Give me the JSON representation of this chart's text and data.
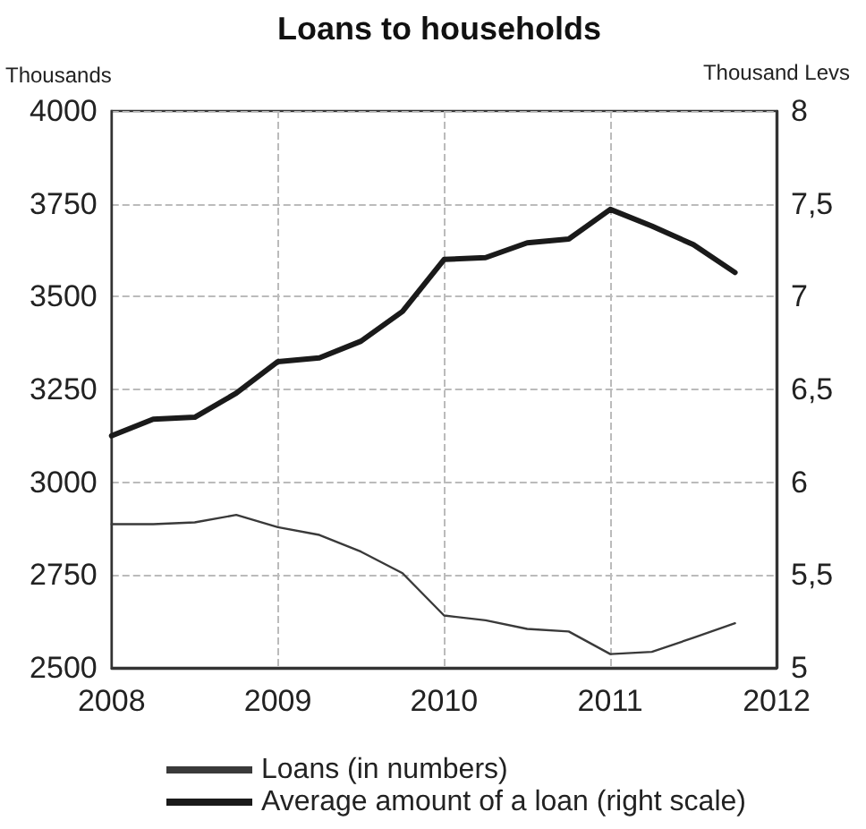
{
  "chart_data": {
    "type": "line",
    "title": "Loans to households",
    "ylabel": "Thousands",
    "y2label": "Thousand Levs",
    "x": [
      2008,
      2008.25,
      2008.5,
      2008.75,
      2009,
      2009.25,
      2009.5,
      2009.75,
      2010,
      2010.25,
      2010.5,
      2010.75,
      2011,
      2011.25,
      2011.5,
      2011.75
    ],
    "series": [
      {
        "name": "Loans (in numbers)",
        "color": "#3a3a3a",
        "values": [
          2887,
          2887,
          2892,
          2912,
          2879,
          2858,
          2813,
          2755,
          2641,
          2628,
          2605,
          2598,
          2537,
          2543,
          2581,
          2620
        ]
      },
      {
        "name": "Average amount of a loan (right scale)",
        "color": "#1a1a1a",
        "axis": "y2",
        "values": [
          6.25,
          6.34,
          6.35,
          6.48,
          6.65,
          6.67,
          6.76,
          6.92,
          7.2,
          7.21,
          7.29,
          7.31,
          7.47,
          7.38,
          7.28,
          7.13
        ]
      }
    ],
    "xlim": [
      2008,
      2012
    ],
    "xticks": [
      2008,
      2009,
      2010,
      2011,
      2012
    ],
    "ylim": [
      2500,
      4000
    ],
    "yticks": [
      2500,
      2750,
      3000,
      3250,
      3500,
      3750,
      4000
    ],
    "y2lim": [
      5,
      8
    ],
    "y2ticks": [
      5,
      {
        "value": 5.5,
        "label": "5,5"
      },
      6,
      {
        "value": 6.5,
        "label": "6,5"
      },
      7,
      {
        "value": 7.5,
        "label": "7,5"
      },
      8
    ],
    "grid": true,
    "legend": "bottom",
    "marker": "none",
    "line_style": "solid"
  }
}
